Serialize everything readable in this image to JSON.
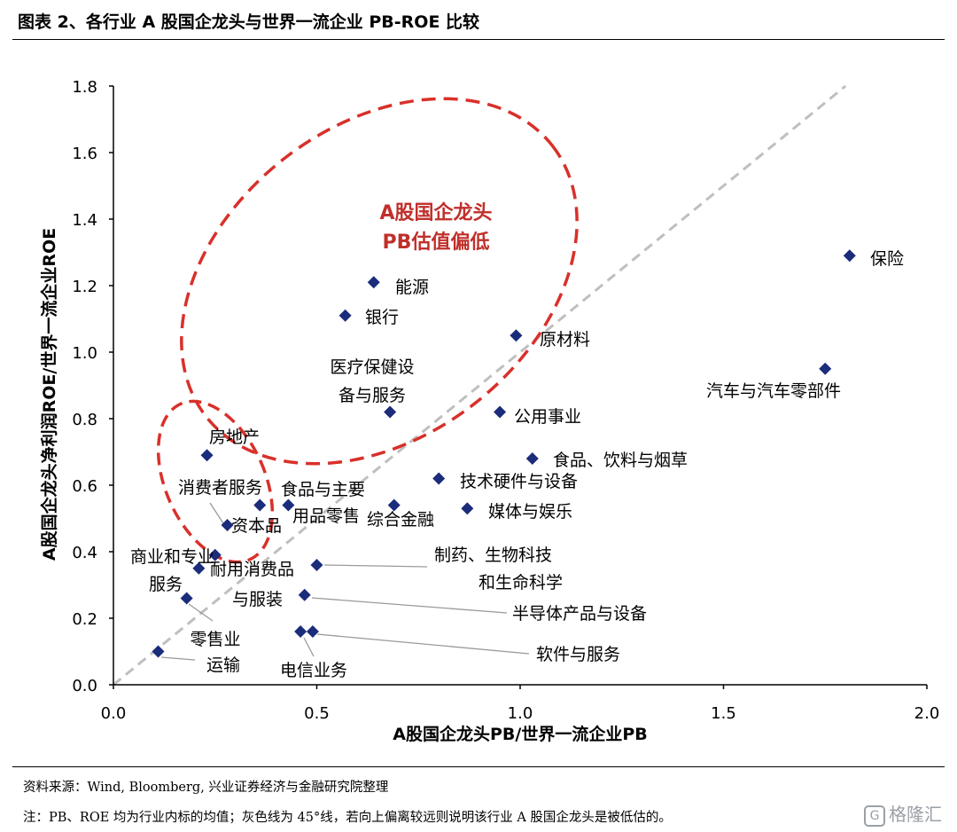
{
  "title": "图表 2、各行业 A 股国企龙头与世界一流企业 PB-ROE 比较",
  "source_note": "资料来源：Wind, Bloomberg, 兴业证券经济与金融研究院整理",
  "footnote": "注：PB、ROE 均为行业内标的均值；灰色线为 45°线，若向上偏离较远则说明该行业 A 股国企龙头是被低估的。",
  "watermark": "格隆汇",
  "colors": {
    "marker": "#1a2c7a",
    "diagonal": "#bfbfbf",
    "ellipse": "#d9302a",
    "annotation": "#c0302b",
    "leader": "#9a9a9a"
  },
  "chart_data": {
    "type": "scatter",
    "xlabel": "A股国企龙头PB/世界一流企业PB",
    "ylabel": "A股国企龙头净利润ROE/世界一流企业ROE",
    "xlim": [
      0.0,
      2.0
    ],
    "ylim": [
      0.0,
      1.8
    ],
    "x_ticks": [
      "0.0",
      "0.5",
      "1.0",
      "1.5",
      "2.0"
    ],
    "y_ticks": [
      "0.0",
      "0.2",
      "0.4",
      "0.6",
      "0.8",
      "1.0",
      "1.2",
      "1.4",
      "1.6",
      "1.8"
    ],
    "grid": false,
    "reference_line": "45° diagonal (y = x), dashed gray",
    "annotation": "A股国企龙头 PB估值偏低",
    "points": [
      {
        "name": "保险",
        "x": 1.81,
        "y": 1.29
      },
      {
        "name": "能源",
        "x": 0.64,
        "y": 1.21
      },
      {
        "name": "银行",
        "x": 0.57,
        "y": 1.11
      },
      {
        "name": "原材料",
        "x": 0.99,
        "y": 1.05
      },
      {
        "name": "汽车与汽车零部件",
        "x": 1.75,
        "y": 0.95
      },
      {
        "name": "医疗保健设备与服务",
        "x": 0.68,
        "y": 0.82
      },
      {
        "name": "公用事业",
        "x": 0.95,
        "y": 0.82
      },
      {
        "name": "房地产",
        "x": 0.23,
        "y": 0.69
      },
      {
        "name": "食品、饮料与烟草",
        "x": 1.03,
        "y": 0.68
      },
      {
        "name": "技术硬件与设备",
        "x": 0.8,
        "y": 0.62
      },
      {
        "name": "消费者服务",
        "x": 0.36,
        "y": 0.54
      },
      {
        "name": "食品与主要用品零售",
        "x": 0.43,
        "y": 0.54
      },
      {
        "name": "综合金融",
        "x": 0.69,
        "y": 0.54
      },
      {
        "name": "媒体与娱乐",
        "x": 0.87,
        "y": 0.53
      },
      {
        "name": "资本品",
        "x": 0.28,
        "y": 0.48
      },
      {
        "name": "商业和专业服务",
        "x": 0.25,
        "y": 0.39
      },
      {
        "name": "耐用消费品与服装",
        "x": 0.21,
        "y": 0.35
      },
      {
        "name": "制药、生物科技和生命科学",
        "x": 0.5,
        "y": 0.36
      },
      {
        "name": "零售业",
        "x": 0.18,
        "y": 0.26
      },
      {
        "name": "半导体产品与设备",
        "x": 0.47,
        "y": 0.27
      },
      {
        "name": "电信业务",
        "x": 0.46,
        "y": 0.16
      },
      {
        "name": "软件与服务",
        "x": 0.49,
        "y": 0.16
      },
      {
        "name": "运输",
        "x": 0.11,
        "y": 0.1
      }
    ]
  }
}
